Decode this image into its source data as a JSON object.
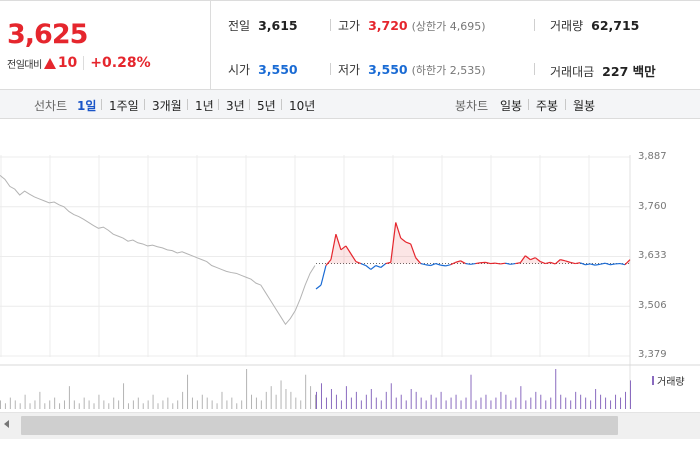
{
  "summary": {
    "current_price": "3,625",
    "change_label": "전일대비",
    "change_icon": "up-triangle-icon",
    "change_amount": "10",
    "change_rate": "+0.28%",
    "prev_close_label": "전일",
    "prev_close": "3,615",
    "high_label": "고가",
    "high": "3,720",
    "upper_limit_label": "(상한가 4,695)",
    "volume_label": "거래량",
    "volume": "62,715",
    "open_label": "시가",
    "open": "3,550",
    "low_label": "저가",
    "low": "3,550",
    "lower_limit_label": "(하한가 2,535)",
    "trade_value_label": "거래대금",
    "trade_value": "227 백만"
  },
  "toolbar": {
    "line_chart_label": "선차트",
    "periods": [
      "1일",
      "1주일",
      "3개월",
      "1년",
      "3년",
      "5년",
      "10년"
    ],
    "active_period": "1일",
    "candle_chart_label": "봉차트",
    "candle_periods": [
      "일봉",
      "주봉",
      "월봉"
    ]
  },
  "chart_data": {
    "type": "line",
    "y_ticks": [
      "3,887",
      "3,760",
      "3,633",
      "3,506",
      "3,379"
    ],
    "ylim": [
      3379,
      3887
    ],
    "reference_price": 3615,
    "colors": {
      "prev_session": "#b4b4b4",
      "above": "#e5262d",
      "below": "#1a6bd4",
      "volume": "#8a6bbf"
    },
    "volume_legend": "거래량",
    "prev_session_series": [
      3840,
      3830,
      3812,
      3805,
      3790,
      3800,
      3792,
      3785,
      3780,
      3775,
      3770,
      3772,
      3765,
      3760,
      3748,
      3740,
      3735,
      3728,
      3720,
      3712,
      3705,
      3708,
      3700,
      3690,
      3685,
      3680,
      3672,
      3675,
      3668,
      3665,
      3660,
      3662,
      3658,
      3655,
      3650,
      3648,
      3642,
      3645,
      3640,
      3635,
      3630,
      3625,
      3620,
      3610,
      3605,
      3600,
      3595,
      3592,
      3590,
      3585,
      3580,
      3575,
      3565,
      3560,
      3540,
      3520,
      3500,
      3480,
      3460,
      3475,
      3495,
      3525,
      3560,
      3590,
      3610
    ],
    "today_series": [
      3550,
      3560,
      3610,
      3625,
      3690,
      3650,
      3660,
      3640,
      3620,
      3615,
      3610,
      3600,
      3610,
      3605,
      3615,
      3618,
      3720,
      3680,
      3670,
      3665,
      3630,
      3615,
      3612,
      3610,
      3615,
      3611,
      3609,
      3612,
      3618,
      3622,
      3615,
      3613,
      3615,
      3617,
      3618,
      3615,
      3616,
      3614,
      3616,
      3613,
      3615,
      3617,
      3635,
      3625,
      3630,
      3620,
      3615,
      3618,
      3614,
      3625,
      3622,
      3618,
      3615,
      3617,
      3612,
      3614,
      3611,
      3613,
      3616,
      3612,
      3614,
      3615,
      3612,
      3625
    ],
    "volume_prev": [
      3,
      2,
      4,
      3,
      2,
      5,
      2,
      3,
      6,
      2,
      3,
      4,
      2,
      3,
      8,
      3,
      2,
      4,
      3,
      2,
      5,
      3,
      2,
      4,
      3,
      9,
      2,
      3,
      4,
      2,
      3,
      5,
      2,
      3,
      4,
      2,
      3,
      6,
      12,
      4,
      3,
      5,
      4,
      3,
      2,
      6,
      3,
      4,
      2,
      3,
      14,
      5,
      4,
      3,
      6,
      8,
      5,
      10,
      7,
      6,
      4,
      3,
      12,
      8,
      5
    ],
    "volume_today": [
      6,
      9,
      4,
      7,
      5,
      3,
      8,
      4,
      6,
      3,
      5,
      7,
      4,
      3,
      6,
      9,
      4,
      5,
      3,
      7,
      6,
      4,
      3,
      5,
      4,
      6,
      3,
      4,
      5,
      3,
      4,
      12,
      3,
      4,
      5,
      3,
      4,
      6,
      5,
      3,
      4,
      8,
      3,
      4,
      6,
      5,
      3,
      4,
      14,
      5,
      4,
      3,
      6,
      5,
      4,
      3,
      7,
      5,
      4,
      3,
      5,
      4,
      6,
      10
    ]
  }
}
